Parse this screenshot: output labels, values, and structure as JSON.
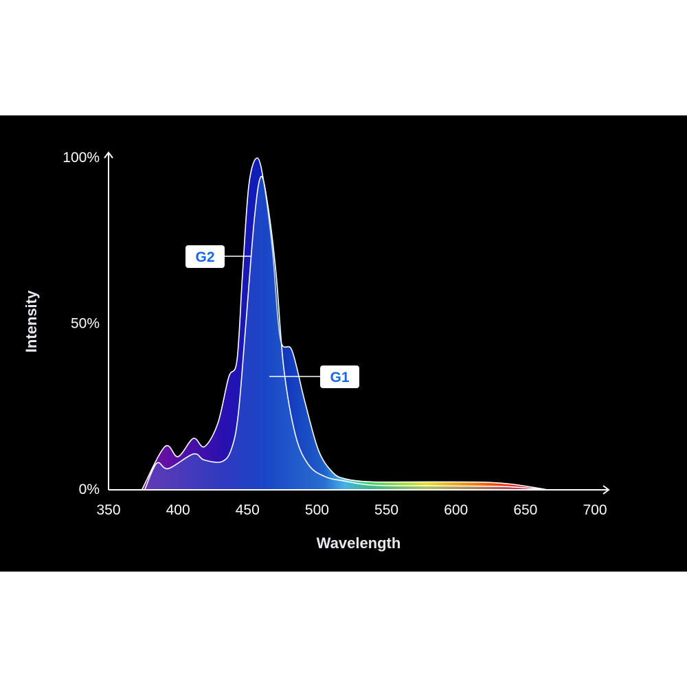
{
  "chart_data": {
    "type": "area",
    "title": "",
    "xlabel": "Wavelength",
    "ylabel": "Intensity",
    "xlim": [
      350,
      700
    ],
    "ylim": [
      0,
      100
    ],
    "x_ticks": [
      "350",
      "400",
      "450",
      "500",
      "550",
      "600",
      "650",
      "700"
    ],
    "y_ticks": [
      "0%",
      "50%",
      "100%"
    ],
    "grid": false,
    "legend": "inline labels",
    "background": "#000000",
    "spectrum_colors": [
      "#7a109e",
      "#2a10b0",
      "#0a20b8",
      "#2060c8",
      "#50c8e8",
      "#40d060",
      "#e8e020",
      "#f08010",
      "#f01010"
    ],
    "series": [
      {
        "name": "G2",
        "label_color": "#1668e8",
        "x": [
          374,
          390.5,
          400,
          411,
          419,
          428.6,
          436.5,
          442.4,
          446.4,
          451,
          457,
          462,
          468,
          473.6,
          482,
          491,
          501,
          511,
          520.5,
          540,
          580,
          620,
          638,
          655,
          666
        ],
        "y": [
          0,
          13,
          10,
          15.5,
          13,
          20,
          34,
          39,
          65,
          92,
          100,
          92,
          72,
          45.5,
          42,
          27,
          12,
          5.4,
          3.3,
          2.4,
          2.4,
          2.3,
          1.8,
          0.8,
          0
        ]
      },
      {
        "name": "G1",
        "label_color": "#1668e8",
        "x": [
          376,
          384.6,
          393,
          411,
          418.7,
          431.6,
          438.5,
          443.4,
          449,
          455,
          459.7,
          464.7,
          470.6,
          476,
          484.5,
          494,
          505.7,
          519,
          540,
          580,
          620,
          640,
          655,
          664
        ],
        "y": [
          0,
          8,
          6.4,
          10.8,
          9,
          8.5,
          12.4,
          23,
          51,
          82,
          94.4,
          85.5,
          65,
          37,
          16.5,
          7.5,
          4,
          2.7,
          1.4,
          1.2,
          1.1,
          0.9,
          0.4,
          0
        ]
      }
    ]
  }
}
